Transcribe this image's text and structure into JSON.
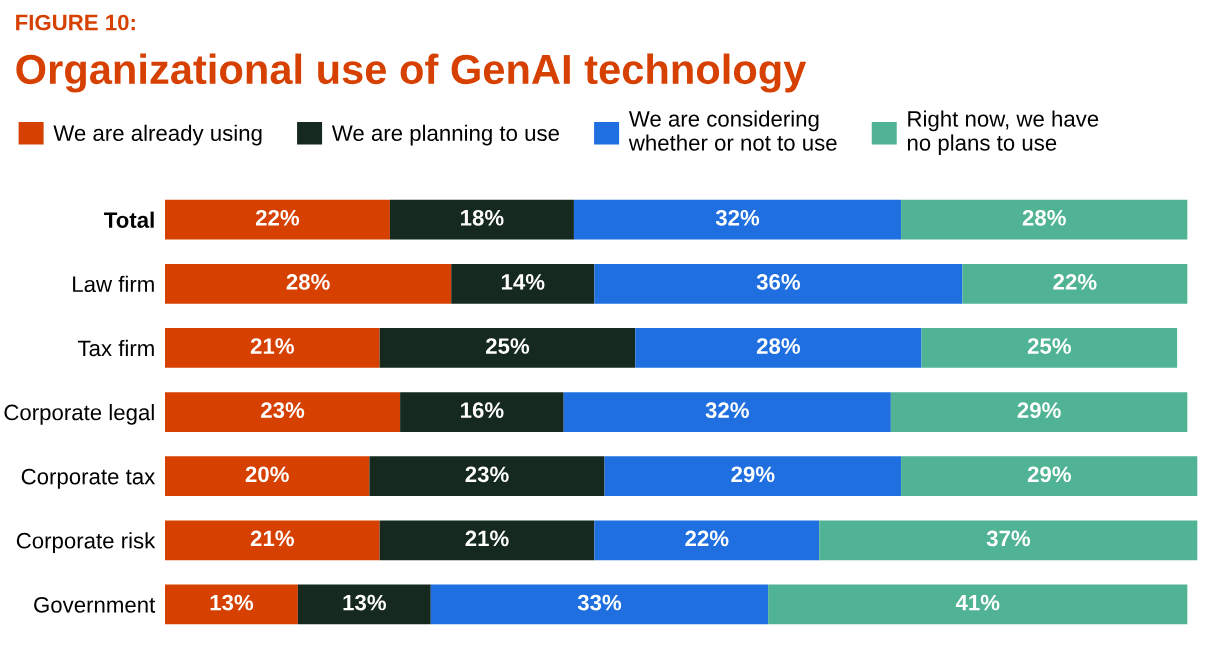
{
  "chart_data": {
    "type": "bar",
    "orientation": "horizontal",
    "stacked": true,
    "title": "Organizational use of GenAI technology",
    "annotations": [
      "FIGURE 10:"
    ],
    "categories": [
      "Total",
      "Law firm",
      "Tax firm",
      "Corporate legal",
      "Corporate tax",
      "Corporate risk",
      "Government"
    ],
    "series": [
      {
        "name": "We are already using",
        "color": "#d64000",
        "values": [
          22,
          28,
          21,
          23,
          20,
          21,
          13
        ],
        "value_labels": [
          "22%",
          "28%",
          "21%",
          "23%",
          "20%",
          "21%",
          "13%"
        ]
      },
      {
        "name": "We are planning to use",
        "color": "#15291f",
        "values": [
          18,
          14,
          25,
          16,
          23,
          21,
          13
        ],
        "value_labels": [
          "18%",
          "14%",
          "25%",
          "16%",
          "23%",
          "21%",
          "13%"
        ]
      },
      {
        "name": "We are considering\nwhether or not to use",
        "color": "#1f6fe0",
        "values": [
          32,
          36,
          28,
          32,
          29,
          22,
          33
        ],
        "value_labels": [
          "32%",
          "36%",
          "28%",
          "32%",
          "29%",
          "22%",
          "33%"
        ]
      },
      {
        "name": "Right now, we have\nno plans to use",
        "color": "#4fb394",
        "values": [
          28,
          22,
          25,
          29,
          29,
          37,
          41
        ],
        "value_labels": [
          "28%",
          "22%",
          "25%",
          "29%",
          "29%",
          "37%",
          "41%"
        ]
      }
    ],
    "legend": "top left",
    "grid": false,
    "tick_labels": "y"
  }
}
